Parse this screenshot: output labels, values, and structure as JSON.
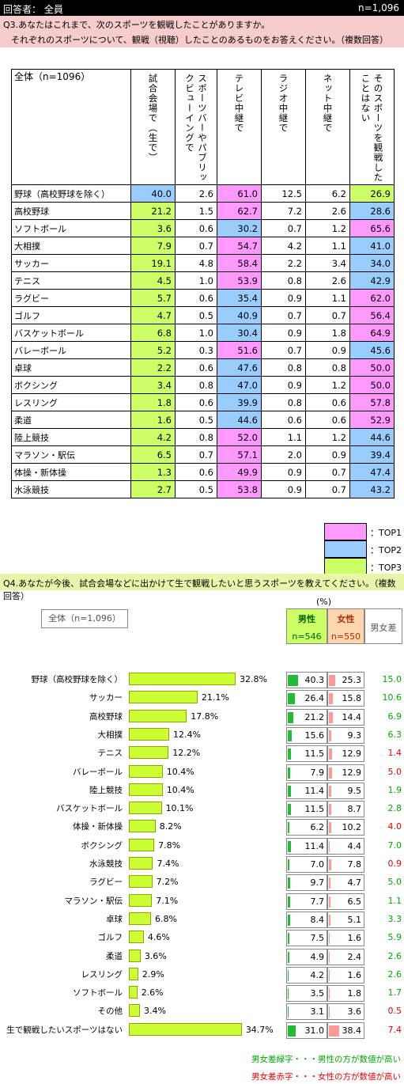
{
  "header": {
    "respondents_label": "回答者： 全員",
    "total": "n=1,096"
  },
  "q3": {
    "line1": "Q3.あなたはこれまで、次のスポーツを観戦したことがありますか。",
    "line2": "それぞれのスポーツについて、観戦（視聴）したことのあるものをお答えください。（複数回答）",
    "corner_label": "全体（n=1096）",
    "columns": [
      "試合会場で（生で）",
      "スポーツバーやパブリックビューイングで",
      "テレビ中継で",
      "ラジオ中継で",
      "ネット中継で",
      "そのスポーツを観戦したことはない"
    ],
    "rows": [
      {
        "label": "野球（高校野球を除く）",
        "values": [
          "40.0",
          "2.6",
          "61.0",
          "12.5",
          "6.2",
          "26.9"
        ],
        "colors": [
          "blue",
          "",
          "pink",
          "",
          "",
          "green"
        ]
      },
      {
        "label": "高校野球",
        "values": [
          "21.2",
          "1.5",
          "62.7",
          "7.2",
          "2.6",
          "28.6"
        ],
        "colors": [
          "green",
          "",
          "pink",
          "",
          "",
          "blue"
        ]
      },
      {
        "label": "ソフトボール",
        "values": [
          "3.6",
          "0.6",
          "30.2",
          "0.7",
          "1.2",
          "65.6"
        ],
        "colors": [
          "green",
          "",
          "blue",
          "",
          "",
          "pink"
        ]
      },
      {
        "label": "大相撲",
        "values": [
          "7.9",
          "0.7",
          "54.7",
          "4.2",
          "1.1",
          "41.0"
        ],
        "colors": [
          "green",
          "",
          "pink",
          "",
          "",
          "blue"
        ]
      },
      {
        "label": "サッカー",
        "values": [
          "19.1",
          "4.8",
          "58.4",
          "2.2",
          "3.4",
          "34.0"
        ],
        "colors": [
          "green",
          "",
          "pink",
          "",
          "",
          "blue"
        ]
      },
      {
        "label": "テニス",
        "values": [
          "4.5",
          "1.0",
          "53.9",
          "0.8",
          "2.6",
          "42.9"
        ],
        "colors": [
          "green",
          "",
          "pink",
          "",
          "",
          "blue"
        ]
      },
      {
        "label": "ラグビー",
        "values": [
          "5.7",
          "0.6",
          "35.4",
          "0.9",
          "1.1",
          "62.0"
        ],
        "colors": [
          "green",
          "",
          "blue",
          "",
          "",
          "pink"
        ]
      },
      {
        "label": "ゴルフ",
        "values": [
          "4.7",
          "0.5",
          "40.9",
          "0.7",
          "0.7",
          "56.4"
        ],
        "colors": [
          "green",
          "",
          "blue",
          "",
          "",
          "pink"
        ]
      },
      {
        "label": "バスケットボール",
        "values": [
          "6.8",
          "1.0",
          "30.4",
          "0.9",
          "1.8",
          "64.9"
        ],
        "colors": [
          "green",
          "",
          "blue",
          "",
          "",
          "pink"
        ]
      },
      {
        "label": "バレーボール",
        "values": [
          "5.2",
          "0.3",
          "51.6",
          "0.7",
          "0.9",
          "45.6"
        ],
        "colors": [
          "green",
          "",
          "pink",
          "",
          "",
          "blue"
        ]
      },
      {
        "label": "卓球",
        "values": [
          "2.2",
          "0.6",
          "47.6",
          "0.8",
          "0.8",
          "50.0"
        ],
        "colors": [
          "green",
          "",
          "blue",
          "",
          "",
          "pink"
        ]
      },
      {
        "label": "ボクシング",
        "values": [
          "3.4",
          "0.8",
          "47.0",
          "0.9",
          "1.2",
          "50.0"
        ],
        "colors": [
          "green",
          "",
          "blue",
          "",
          "",
          "pink"
        ]
      },
      {
        "label": "レスリング",
        "values": [
          "1.8",
          "0.6",
          "39.9",
          "0.8",
          "0.6",
          "57.8"
        ],
        "colors": [
          "green",
          "",
          "blue",
          "",
          "",
          "pink"
        ]
      },
      {
        "label": "柔道",
        "values": [
          "1.6",
          "0.5",
          "44.6",
          "0.6",
          "0.6",
          "52.9"
        ],
        "colors": [
          "green",
          "",
          "blue",
          "",
          "",
          "pink"
        ]
      },
      {
        "label": "陸上競技",
        "values": [
          "4.2",
          "0.8",
          "52.0",
          "1.1",
          "1.2",
          "44.6"
        ],
        "colors": [
          "green",
          "",
          "pink",
          "",
          "",
          "blue"
        ]
      },
      {
        "label": "マラソン・駅伝",
        "values": [
          "6.5",
          "0.7",
          "57.1",
          "2.0",
          "0.9",
          "39.4"
        ],
        "colors": [
          "green",
          "",
          "pink",
          "",
          "",
          "blue"
        ]
      },
      {
        "label": "体操・新体操",
        "values": [
          "1.3",
          "0.6",
          "49.9",
          "0.9",
          "0.7",
          "47.4"
        ],
        "colors": [
          "green",
          "",
          "pink",
          "",
          "",
          "blue"
        ]
      },
      {
        "label": "水泳競技",
        "values": [
          "2.7",
          "0.5",
          "53.8",
          "0.9",
          "0.7",
          "43.2"
        ],
        "colors": [
          "green",
          "",
          "pink",
          "",
          "",
          "blue"
        ]
      }
    ],
    "legend": [
      {
        "label": "：TOP1",
        "color": "#ff99ff"
      },
      {
        "label": "：TOP2",
        "color": "#99ccff"
      },
      {
        "label": "：TOP3",
        "color": "#ccff66"
      }
    ]
  },
  "q4": {
    "question": "Q4.あなたが今後、試合会場などに出かけて生で観戦したいと思うスポーツを教えてください。（複数回答）",
    "total_label": "全体（n=1,096）",
    "unit": "(%)",
    "male_header": "男性",
    "male_n": "n=546",
    "female_header": "女性",
    "female_n": "n=550",
    "diff_header": "男女差",
    "note_green": "男女差緑字・・・男性の方が数値が高い",
    "note_red": "男女差赤字・・・女性の方が数値が高い",
    "colors": {
      "green": "#00aa00",
      "red": "#ee0000"
    }
  },
  "chart_data": {
    "type": "bar",
    "categories": [
      "野球（高校野球を除く）",
      "サッカー",
      "高校野球",
      "大相撲",
      "テニス",
      "バレーボール",
      "陸上競技",
      "バスケットボール",
      "体操・新体操",
      "ボクシング",
      "水泳競技",
      "ラグビー",
      "マラソン・駅伝",
      "卓球",
      "ゴルフ",
      "柔道",
      "レスリング",
      "ソフトボール",
      "その他",
      "生で観戦したいスポーツはない"
    ],
    "series": [
      {
        "name": "全体（n=1,096）",
        "values": [
          32.8,
          21.1,
          17.8,
          12.4,
          12.2,
          10.4,
          10.4,
          10.1,
          8.2,
          7.8,
          7.4,
          7.2,
          7.1,
          6.8,
          4.6,
          3.6,
          2.9,
          2.6,
          3.4,
          34.7
        ]
      },
      {
        "name": "男性",
        "values": [
          40.3,
          26.4,
          21.2,
          15.6,
          11.5,
          7.9,
          11.4,
          11.5,
          6.2,
          11.4,
          7.0,
          9.7,
          7.7,
          8.4,
          7.5,
          4.9,
          4.2,
          3.5,
          3.1,
          31.0
        ]
      },
      {
        "name": "女性",
        "values": [
          25.3,
          15.8,
          14.4,
          9.3,
          12.9,
          12.9,
          9.5,
          8.7,
          10.2,
          4.4,
          7.8,
          4.7,
          6.5,
          5.1,
          1.6,
          2.4,
          1.6,
          1.8,
          3.6,
          38.4
        ]
      },
      {
        "name": "男女差",
        "values": [
          15.0,
          10.6,
          6.9,
          6.3,
          1.4,
          5.0,
          1.9,
          2.8,
          4.0,
          7.0,
          0.9,
          5.0,
          1.1,
          3.3,
          5.9,
          2.6,
          2.6,
          1.7,
          0.5,
          7.4
        ]
      }
    ],
    "diff_color": [
      "green",
      "green",
      "green",
      "green",
      "red",
      "red",
      "green",
      "green",
      "red",
      "green",
      "red",
      "green",
      "green",
      "green",
      "green",
      "green",
      "green",
      "green",
      "red",
      "red"
    ],
    "value_labels": [
      "32.8%",
      "21.1%",
      "17.8%",
      "12.4%",
      "12.2%",
      "10.4%",
      "10.4%",
      "10.1%",
      "8.2%",
      "7.8%",
      "7.4%",
      "7.2%",
      "7.1%",
      "6.8%",
      "4.6%",
      "3.6%",
      "2.9%",
      "2.6%",
      "3.4%",
      "34.7%"
    ]
  }
}
